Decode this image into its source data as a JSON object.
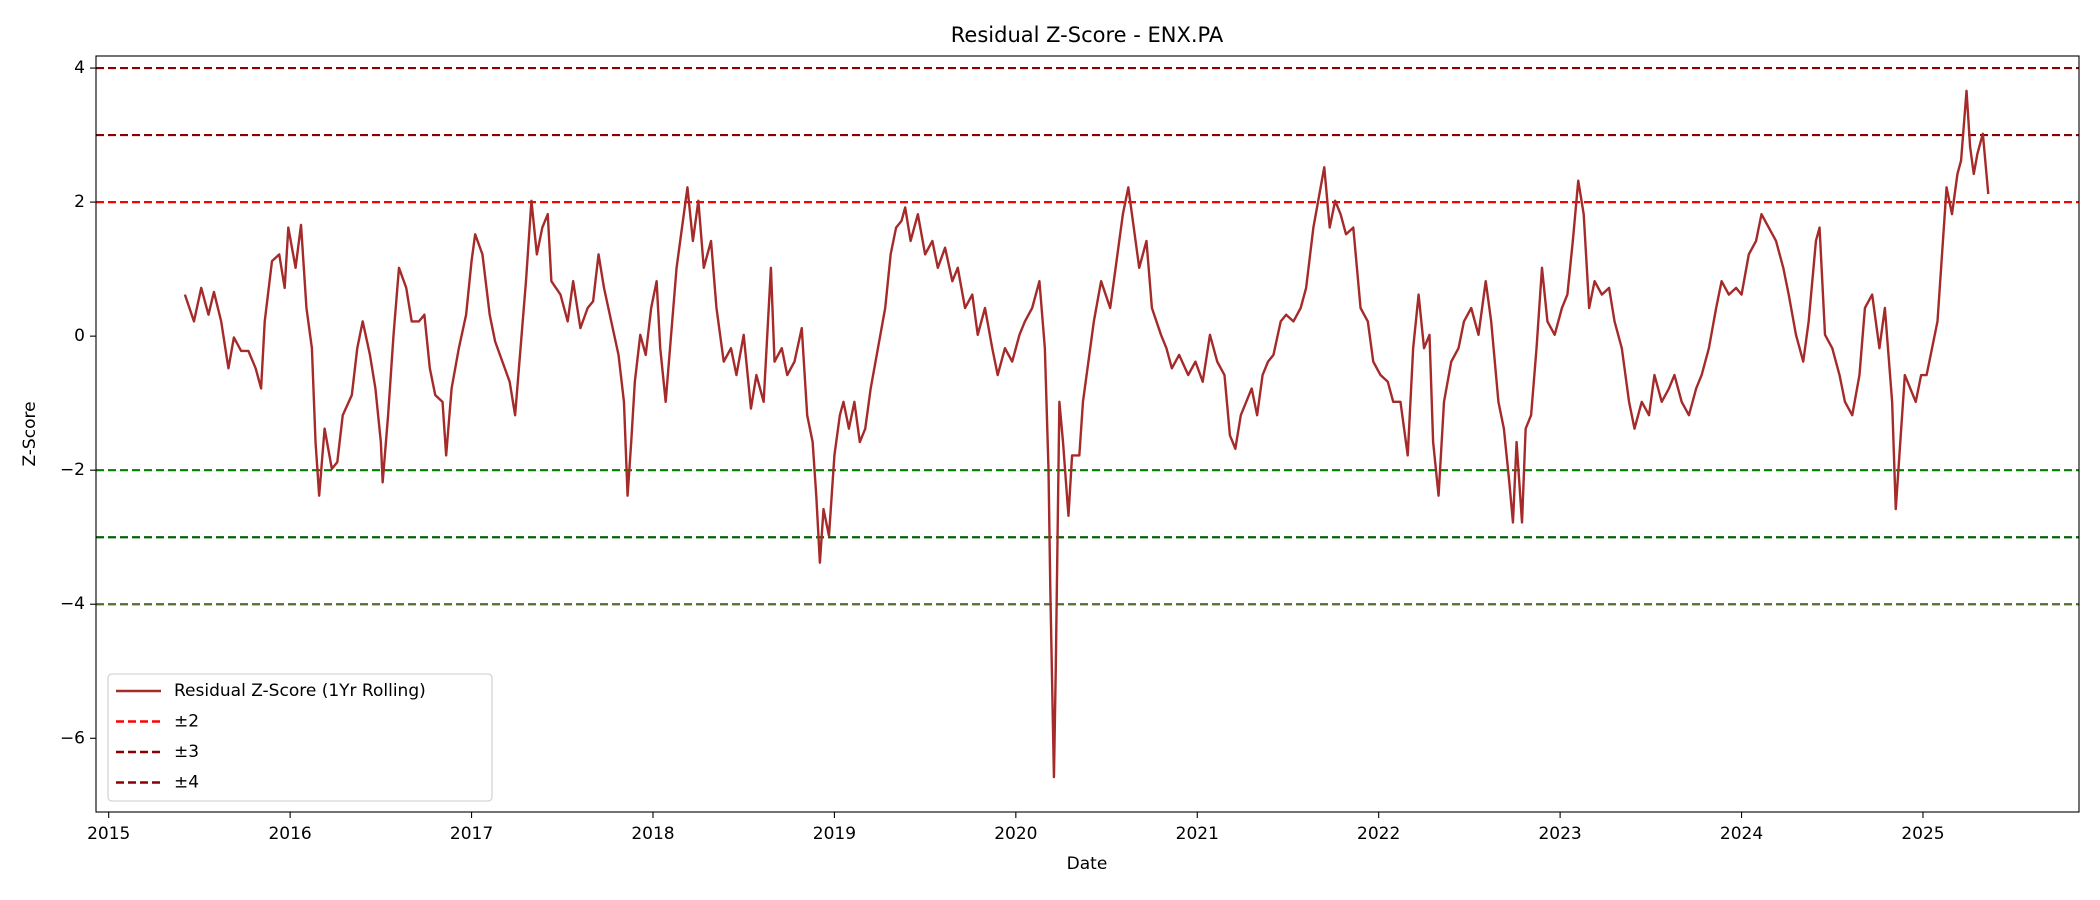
{
  "chart_data": {
    "type": "line",
    "title": "Residual Z-Score - ENX.PA",
    "x_label": "Date",
    "y_label": "Z-Score",
    "xlim": [
      2014.93,
      2025.86
    ],
    "ylim": [
      -7.1,
      4.18
    ],
    "xticks": [
      2015,
      2016,
      2017,
      2018,
      2019,
      2020,
      2021,
      2022,
      2023,
      2024,
      2025
    ],
    "yticks": [
      {
        "value": -6,
        "label": "−6"
      },
      {
        "value": -4,
        "label": "−4"
      },
      {
        "value": -2,
        "label": "−2"
      },
      0,
      2,
      4
    ],
    "legend_position": "lower left",
    "x": [
      2015.42,
      2015.47,
      2015.51,
      2015.55,
      2015.58,
      2015.62,
      2015.66,
      2015.69,
      2015.73,
      2015.77,
      2015.81,
      2015.84,
      2015.86,
      2015.9,
      2015.94,
      2015.97,
      2015.99,
      2016.03,
      2016.06,
      2016.09,
      2016.12,
      2016.14,
      2016.16,
      2016.19,
      2016.23,
      2016.26,
      2016.29,
      2016.34,
      2016.37,
      2016.4,
      2016.44,
      2016.47,
      2016.5,
      2016.51,
      2016.54,
      2016.57,
      2016.6,
      2016.64,
      2016.67,
      2016.71,
      2016.74,
      2016.77,
      2016.8,
      2016.84,
      2016.86,
      2016.89,
      2016.93,
      2016.97,
      2017.0,
      2017.02,
      2017.06,
      2017.1,
      2017.13,
      2017.17,
      2017.21,
      2017.24,
      2017.27,
      2017.3,
      2017.33,
      2017.36,
      2017.39,
      2017.42,
      2017.44,
      2017.49,
      2017.53,
      2017.56,
      2017.6,
      2017.64,
      2017.67,
      2017.7,
      2017.73,
      2017.77,
      2017.81,
      2017.84,
      2017.86,
      2017.88,
      2017.9,
      2017.93,
      2017.96,
      2017.99,
      2018.02,
      2018.04,
      2018.07,
      2018.1,
      2018.13,
      2018.16,
      2018.19,
      2018.22,
      2018.25,
      2018.28,
      2018.32,
      2018.35,
      2018.39,
      2018.43,
      2018.46,
      2018.5,
      2018.54,
      2018.57,
      2018.61,
      2018.65,
      2018.67,
      2018.71,
      2018.74,
      2018.78,
      2018.82,
      2018.85,
      2018.88,
      2018.9,
      2018.92,
      2018.94,
      2018.97,
      2019.0,
      2019.03,
      2019.05,
      2019.08,
      2019.11,
      2019.14,
      2019.17,
      2019.2,
      2019.24,
      2019.28,
      2019.31,
      2019.34,
      2019.37,
      2019.39,
      2019.42,
      2019.46,
      2019.5,
      2019.54,
      2019.57,
      2019.61,
      2019.65,
      2019.68,
      2019.72,
      2019.76,
      2019.79,
      2019.83,
      2019.87,
      2019.9,
      2019.94,
      2019.98,
      2020.02,
      2020.05,
      2020.09,
      2020.13,
      2020.16,
      2020.18,
      2020.19,
      2020.21,
      2020.22,
      2020.24,
      2020.26,
      2020.29,
      2020.31,
      2020.35,
      2020.37,
      2020.4,
      2020.43,
      2020.47,
      2020.52,
      2020.55,
      2020.59,
      2020.62,
      2020.65,
      2020.68,
      2020.72,
      2020.75,
      2020.8,
      2020.83,
      2020.86,
      2020.9,
      2020.95,
      2020.99,
      2021.03,
      2021.07,
      2021.11,
      2021.15,
      2021.18,
      2021.21,
      2021.24,
      2021.27,
      2021.3,
      2021.33,
      2021.36,
      2021.39,
      2021.42,
      2021.46,
      2021.49,
      2021.53,
      2021.57,
      2021.6,
      2021.64,
      2021.68,
      2021.7,
      2021.73,
      2021.76,
      2021.79,
      2021.82,
      2021.86,
      2021.9,
      2021.94,
      2021.97,
      2022.01,
      2022.05,
      2022.08,
      2022.12,
      2022.16,
      2022.19,
      2022.22,
      2022.25,
      2022.28,
      2022.3,
      2022.33,
      2022.36,
      2022.4,
      2022.44,
      2022.47,
      2022.51,
      2022.55,
      2022.59,
      2022.62,
      2022.66,
      2022.69,
      2022.72,
      2022.74,
      2022.76,
      2022.79,
      2022.81,
      2022.84,
      2022.87,
      2022.9,
      2022.93,
      2022.97,
      2023.01,
      2023.04,
      2023.07,
      2023.1,
      2023.13,
      2023.16,
      2023.19,
      2023.23,
      2023.27,
      2023.3,
      2023.34,
      2023.38,
      2023.41,
      2023.45,
      2023.49,
      2023.52,
      2023.56,
      2023.6,
      2023.63,
      2023.67,
      2023.71,
      2023.75,
      2023.78,
      2023.82,
      2023.86,
      2023.89,
      2023.93,
      2023.97,
      2024.0,
      2024.04,
      2024.08,
      2024.11,
      2024.15,
      2024.19,
      2024.23,
      2024.26,
      2024.3,
      2024.34,
      2024.37,
      2024.41,
      2024.43,
      2024.46,
      2024.5,
      2024.54,
      2024.57,
      2024.61,
      2024.65,
      2024.68,
      2024.72,
      2024.76,
      2024.79,
      2024.83,
      2024.85,
      2024.88,
      2024.9,
      2024.93,
      2024.96,
      2024.99,
      2025.02,
      2025.05,
      2025.08,
      2025.11,
      2025.13,
      2025.16,
      2025.19,
      2025.21,
      2025.24,
      2025.26,
      2025.28,
      2025.3,
      2025.33,
      2025.36
    ],
    "series": [
      {
        "name": "Residual Z-Score (1Yr Rolling)",
        "color": "#a52a2a",
        "values": [
          0.62,
          0.22,
          0.72,
          0.32,
          0.66,
          0.22,
          -0.48,
          -0.02,
          -0.22,
          -0.22,
          -0.48,
          -0.78,
          0.22,
          1.12,
          1.22,
          0.72,
          1.62,
          1.02,
          1.66,
          0.42,
          -0.18,
          -1.58,
          -2.38,
          -1.38,
          -1.98,
          -1.88,
          -1.18,
          -0.88,
          -0.18,
          0.22,
          -0.28,
          -0.78,
          -1.58,
          -2.18,
          -1.18,
          0.02,
          1.02,
          0.72,
          0.22,
          0.22,
          0.32,
          -0.48,
          -0.88,
          -0.98,
          -1.78,
          -0.78,
          -0.18,
          0.32,
          1.12,
          1.52,
          1.22,
          0.32,
          -0.08,
          -0.38,
          -0.68,
          -1.18,
          -0.18,
          0.82,
          2.02,
          1.22,
          1.62,
          1.82,
          0.82,
          0.62,
          0.22,
          0.82,
          0.12,
          0.42,
          0.52,
          1.22,
          0.72,
          0.22,
          -0.28,
          -0.98,
          -2.38,
          -1.58,
          -0.68,
          0.02,
          -0.28,
          0.42,
          0.82,
          -0.18,
          -0.98,
          0.02,
          1.02,
          1.62,
          2.22,
          1.42,
          2.02,
          1.02,
          1.42,
          0.42,
          -0.38,
          -0.18,
          -0.58,
          0.02,
          -1.08,
          -0.58,
          -0.98,
          1.02,
          -0.38,
          -0.18,
          -0.58,
          -0.38,
          0.12,
          -1.18,
          -1.58,
          -2.38,
          -3.38,
          -2.58,
          -2.98,
          -1.78,
          -1.18,
          -0.98,
          -1.38,
          -0.98,
          -1.58,
          -1.38,
          -0.78,
          -0.18,
          0.42,
          1.22,
          1.62,
          1.72,
          1.92,
          1.42,
          1.82,
          1.22,
          1.42,
          1.02,
          1.32,
          0.82,
          1.02,
          0.42,
          0.62,
          0.02,
          0.42,
          -0.18,
          -0.58,
          -0.18,
          -0.38,
          0.02,
          0.22,
          0.42,
          0.82,
          -0.18,
          -1.98,
          -3.78,
          -6.58,
          -4.98,
          -0.98,
          -1.58,
          -2.68,
          -1.78,
          -1.78,
          -0.98,
          -0.38,
          0.22,
          0.82,
          0.42,
          1.02,
          1.82,
          2.22,
          1.62,
          1.02,
          1.42,
          0.42,
          0.02,
          -0.18,
          -0.48,
          -0.28,
          -0.58,
          -0.38,
          -0.68,
          0.02,
          -0.38,
          -0.58,
          -1.48,
          -1.68,
          -1.18,
          -0.98,
          -0.78,
          -1.18,
          -0.58,
          -0.38,
          -0.28,
          0.22,
          0.32,
          0.22,
          0.42,
          0.72,
          1.62,
          2.22,
          2.52,
          1.62,
          2.02,
          1.82,
          1.52,
          1.62,
          0.42,
          0.22,
          -0.38,
          -0.58,
          -0.68,
          -0.98,
          -0.98,
          -1.78,
          -0.18,
          0.62,
          -0.18,
          0.02,
          -1.58,
          -2.38,
          -0.98,
          -0.38,
          -0.18,
          0.22,
          0.42,
          0.02,
          0.82,
          0.22,
          -0.98,
          -1.38,
          -2.18,
          -2.78,
          -1.58,
          -2.78,
          -1.38,
          -1.18,
          -0.18,
          1.02,
          0.22,
          0.02,
          0.42,
          0.62,
          1.42,
          2.32,
          1.82,
          0.42,
          0.82,
          0.62,
          0.72,
          0.22,
          -0.18,
          -0.98,
          -1.38,
          -0.98,
          -1.18,
          -0.58,
          -0.98,
          -0.78,
          -0.58,
          -0.98,
          -1.18,
          -0.78,
          -0.58,
          -0.18,
          0.42,
          0.82,
          0.62,
          0.72,
          0.62,
          1.22,
          1.42,
          1.82,
          1.62,
          1.42,
          1.02,
          0.62,
          0.02,
          -0.38,
          0.22,
          1.42,
          1.62,
          0.02,
          -0.18,
          -0.58,
          -0.98,
          -1.18,
          -0.58,
          0.42,
          0.62,
          -0.18,
          0.42,
          -0.98,
          -2.58,
          -1.38,
          -0.58,
          -0.78,
          -0.98,
          -0.58,
          -0.58,
          -0.18,
          0.22,
          1.42,
          2.22,
          1.82,
          2.42,
          2.62,
          3.66,
          2.82,
          2.42,
          2.72,
          3.02,
          2.12
        ]
      }
    ],
    "hline_groups": [
      {
        "name": "±2",
        "color": "red",
        "lines": [
          {
            "value": 2,
            "color": "red"
          },
          {
            "value": -2,
            "color": "green"
          }
        ]
      },
      {
        "name": "±3",
        "color": "#8b0000",
        "lines": [
          {
            "value": 3,
            "color": "#8b0000"
          },
          {
            "value": -3,
            "color": "#006400"
          }
        ]
      },
      {
        "name": "±4",
        "color": "#8b0000",
        "lines": [
          {
            "value": 4,
            "color": "#8b0000"
          },
          {
            "value": -4,
            "color": "#556b2f"
          }
        ]
      }
    ]
  }
}
